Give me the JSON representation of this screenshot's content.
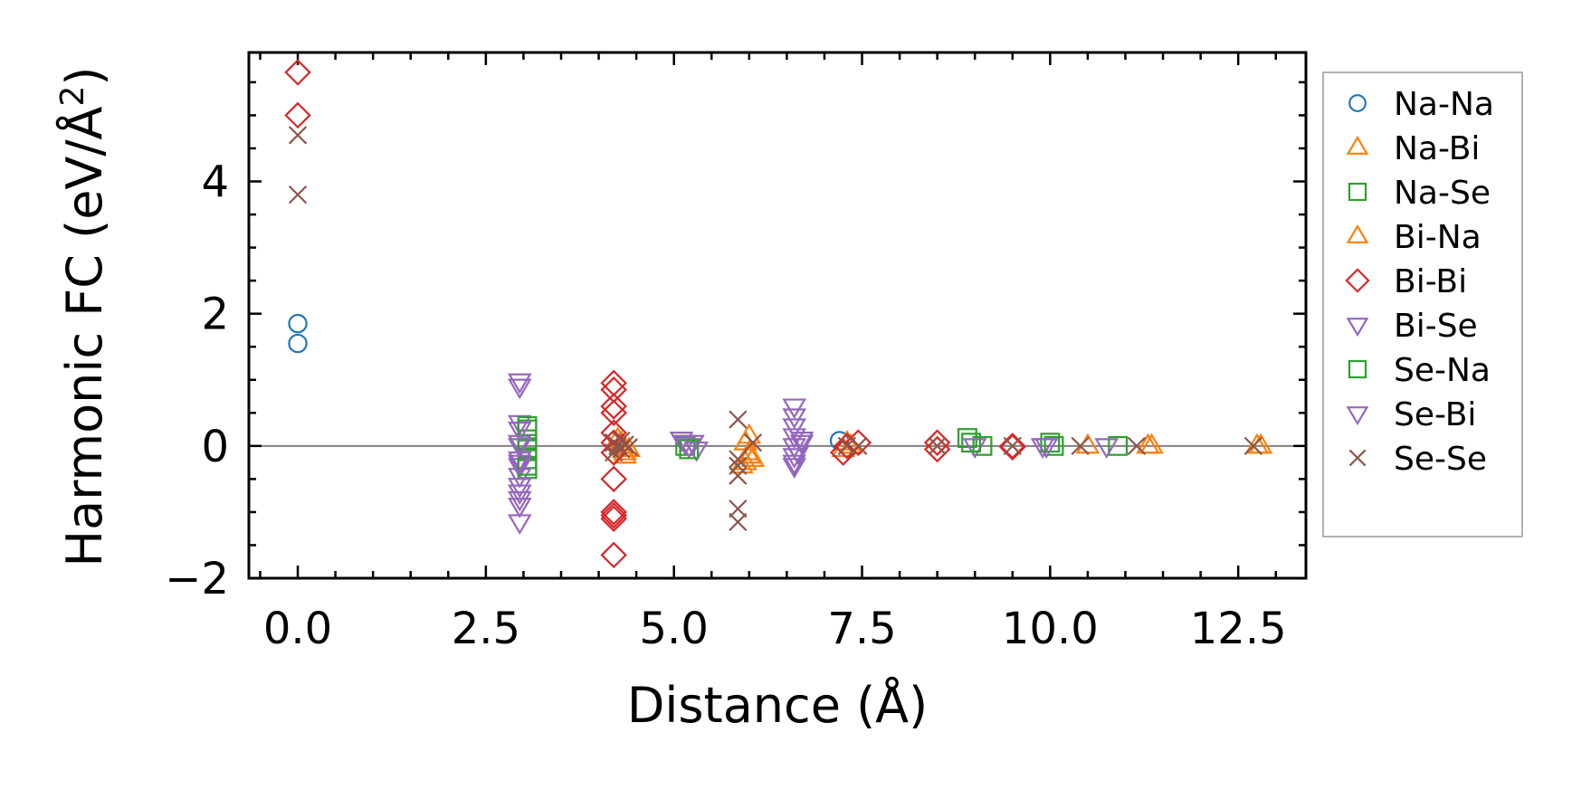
{
  "chart_data": {
    "type": "scatter",
    "title": "",
    "xlabel": "Distance (Å)",
    "ylabel_main": "Harmonic FC (eV/Å",
    "ylabel_sup": "2",
    "ylabel_close": ")",
    "xlim": [
      -0.65,
      13.4
    ],
    "ylim": [
      -2.0,
      5.95
    ],
    "xticks": [
      0.0,
      2.5,
      5.0,
      7.5,
      10.0,
      12.5
    ],
    "xtick_labels": [
      "0.0",
      "2.5",
      "5.0",
      "7.5",
      "10.0",
      "12.5"
    ],
    "yticks": [
      -2,
      0,
      2,
      4
    ],
    "ytick_labels": [
      "−2",
      "0",
      "2",
      "4"
    ],
    "zero_line": true,
    "legend_position": "right-outside",
    "series": [
      {
        "name": "Na-Na",
        "marker": "circle",
        "color": "#1f77b4",
        "x": [
          0,
          0,
          7.2
        ],
        "y": [
          1.85,
          1.55,
          0.08
        ]
      },
      {
        "name": "Na-Bi",
        "marker": "triangle-up",
        "color": "#ff7f0e",
        "x": [
          4.25,
          4.3,
          4.35,
          4.4,
          4.35,
          5.95,
          6.0,
          6.05,
          5.95,
          6.0,
          7.25,
          7.3,
          10.5,
          11.3,
          12.75
        ],
        "y": [
          0.1,
          0.0,
          -0.1,
          -0.05,
          -0.15,
          0.05,
          -0.1,
          -0.2,
          -0.25,
          0.15,
          -0.05,
          0.05,
          0.0,
          0.0,
          0.0
        ]
      },
      {
        "name": "Na-Se",
        "marker": "square",
        "color": "#2ca02c",
        "x": [
          3.05,
          3.05,
          3.05,
          3.05,
          3.05,
          5.15,
          8.9,
          9.1,
          10.05,
          10.9
        ],
        "y": [
          0.25,
          0.1,
          -0.05,
          -0.2,
          -0.35,
          0.0,
          0.12,
          0.0,
          0.0,
          0.0
        ]
      },
      {
        "name": "Bi-Na",
        "marker": "triangle-up",
        "color": "#ff7f0e",
        "x": [
          4.3,
          4.4,
          5.9,
          6.0,
          7.35,
          11.35,
          12.8
        ],
        "y": [
          0.05,
          -0.05,
          -0.3,
          -0.15,
          0.0,
          0.0,
          0.0
        ]
      },
      {
        "name": "Bi-Bi",
        "marker": "diamond",
        "color": "#d62728",
        "x": [
          0,
          0,
          4.2,
          4.2,
          4.2,
          4.2,
          4.2,
          4.2,
          4.2,
          4.2,
          4.2,
          4.2,
          4.2,
          4.2,
          7.25,
          7.3,
          7.45,
          8.5,
          8.5,
          9.5,
          9.5
        ],
        "y": [
          5.65,
          5.0,
          0.95,
          0.85,
          0.6,
          0.5,
          0.2,
          0.05,
          -0.1,
          -0.5,
          -1.0,
          -1.05,
          -1.1,
          -1.65,
          -0.1,
          0.0,
          0.05,
          0.05,
          -0.05,
          0.0,
          -0.02
        ]
      },
      {
        "name": "Bi-Se",
        "marker": "triangle-down",
        "color": "#9467bd",
        "x": [
          2.95,
          2.95,
          2.95,
          2.95,
          2.95,
          2.95,
          2.95,
          2.95,
          2.95,
          2.95,
          2.95,
          2.95,
          2.95,
          5.1,
          5.15,
          5.2,
          5.3,
          6.6,
          6.6,
          6.6,
          6.6,
          6.6,
          6.6,
          6.6,
          6.6,
          6.7,
          9.0,
          9.9,
          10.75
        ],
        "y": [
          0.98,
          0.9,
          0.35,
          0.25,
          0.0,
          -0.2,
          -0.3,
          -0.45,
          -0.6,
          -0.7,
          -0.8,
          -0.9,
          -1.15,
          0.1,
          0.05,
          0.0,
          -0.05,
          0.6,
          0.45,
          0.3,
          0.15,
          0.0,
          -0.15,
          -0.25,
          -0.3,
          0.05,
          0.0,
          0.0,
          0.0
        ]
      },
      {
        "name": "Se-Na",
        "marker": "square",
        "color": "#2ca02c",
        "x": [
          3.05,
          3.05,
          5.2,
          8.95,
          10.0
        ],
        "y": [
          0.3,
          -0.3,
          -0.05,
          0.05,
          0.05
        ]
      },
      {
        "name": "Se-Bi",
        "marker": "triangle-down",
        "color": "#9467bd",
        "x": [
          2.95,
          2.95,
          5.25,
          6.65,
          6.7,
          9.95
        ],
        "y": [
          0.05,
          -0.25,
          0.05,
          -0.1,
          0.1,
          0.0
        ]
      },
      {
        "name": "Se-Se",
        "marker": "x",
        "color": "#8c564b",
        "x": [
          0,
          0,
          4.2,
          4.25,
          4.3,
          4.35,
          4.4,
          4.2,
          4.3,
          5.85,
          5.85,
          5.85,
          5.85,
          5.85,
          5.85,
          6.05,
          7.3,
          7.45,
          8.5,
          9.5,
          10.4,
          11.15,
          12.7
        ],
        "y": [
          4.7,
          3.8,
          0.05,
          0.0,
          -0.05,
          0.02,
          -0.02,
          -0.1,
          0.08,
          0.4,
          -0.2,
          -0.3,
          -0.45,
          -0.95,
          -1.15,
          0.05,
          0.0,
          0.0,
          0.0,
          0.0,
          0.0,
          0.0,
          0.0
        ]
      }
    ]
  }
}
